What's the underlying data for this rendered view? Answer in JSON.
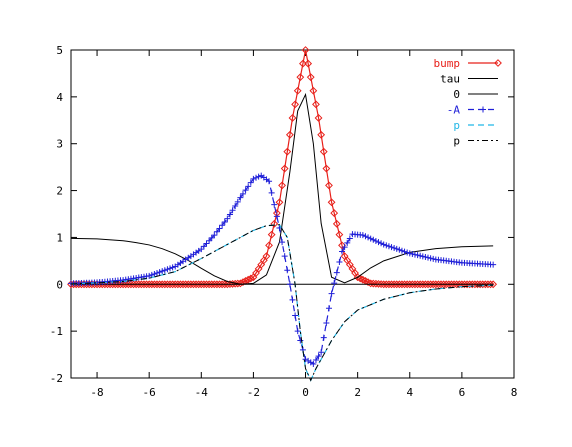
{
  "chart_data": {
    "type": "line",
    "title": "",
    "xlabel": "",
    "ylabel": "",
    "xlim": [
      -9,
      8
    ],
    "ylim": [
      -2,
      5
    ],
    "grid": false,
    "legend_position": "top-right",
    "x_ticks": [
      -8,
      -6,
      -4,
      -2,
      0,
      2,
      4,
      6,
      8
    ],
    "y_ticks": [
      -2,
      -1,
      0,
      1,
      2,
      3,
      4,
      5
    ],
    "x_tick_labels": [
      "-8",
      "-6",
      "-4",
      "-2",
      "0",
      "2",
      "4",
      "6",
      "8"
    ],
    "y_tick_labels": [
      "-2",
      "-1",
      "0",
      "1",
      "2",
      "3",
      "4",
      "5"
    ],
    "series": [
      {
        "name": "bump",
        "color": "#e8201a",
        "style": "solid-diamonds",
        "x": [
          -9.0,
          -8.0,
          -7.0,
          -6.0,
          -5.0,
          -4.0,
          -3.0,
          -2.5,
          -2.0,
          -1.5,
          -1.0,
          -0.5,
          0.0,
          0.5,
          1.0,
          1.5,
          2.0,
          2.5,
          3.0,
          4.0,
          5.0,
          6.0,
          7.2
        ],
        "y": [
          0.0,
          0.0,
          0.0,
          0.0,
          0.0,
          0.0,
          0.0,
          0.02,
          0.15,
          0.6,
          1.75,
          3.55,
          5.0,
          3.55,
          1.75,
          0.6,
          0.15,
          0.02,
          0.0,
          0.0,
          0.0,
          0.0,
          0.0
        ]
      },
      {
        "name": "tau",
        "color": "#000000",
        "style": "solid",
        "x": [
          -9.0,
          -8.0,
          -7.0,
          -6.5,
          -6.0,
          -5.5,
          -5.0,
          -4.5,
          -4.0,
          -3.5,
          -3.0,
          -2.5,
          -2.0,
          -1.5,
          -1.0,
          -0.6,
          -0.3,
          0.0,
          0.3,
          0.6,
          1.0,
          1.5,
          2.0,
          2.5,
          3.0,
          4.0,
          5.0,
          6.0,
          7.2
        ],
        "y": [
          0.98,
          0.97,
          0.93,
          0.89,
          0.84,
          0.76,
          0.65,
          0.51,
          0.34,
          0.18,
          0.06,
          0.0,
          0.02,
          0.2,
          0.9,
          2.4,
          3.7,
          4.05,
          3.0,
          1.3,
          0.15,
          0.03,
          0.15,
          0.35,
          0.5,
          0.68,
          0.76,
          0.8,
          0.82
        ]
      },
      {
        "name": "0",
        "color": "#000000",
        "style": "solid",
        "x": [
          -9.0,
          7.2
        ],
        "y": [
          0.0,
          0.0
        ]
      },
      {
        "name": "-A",
        "color": "#2020d8",
        "style": "dashed-plus",
        "x": [
          -9.0,
          -8.0,
          -7.0,
          -6.0,
          -5.0,
          -4.0,
          -3.5,
          -3.0,
          -2.5,
          -2.0,
          -1.7,
          -1.4,
          -1.0,
          -0.6,
          -0.3,
          0.0,
          0.3,
          0.6,
          1.0,
          1.4,
          1.8,
          2.2,
          2.6,
          3.0,
          4.0,
          5.0,
          6.0,
          7.2
        ],
        "y": [
          0.02,
          0.04,
          0.09,
          0.18,
          0.38,
          0.75,
          1.05,
          1.4,
          1.85,
          2.25,
          2.32,
          2.2,
          1.2,
          0.0,
          -1.0,
          -1.6,
          -1.7,
          -1.45,
          -0.2,
          0.7,
          1.07,
          1.05,
          0.95,
          0.85,
          0.66,
          0.53,
          0.46,
          0.42
        ]
      },
      {
        "name": "p",
        "color": "#22b7e6",
        "style": "dashed",
        "x": [
          -9.0,
          -8.0,
          -7.0,
          -6.0,
          -5.0,
          -4.0,
          -3.0,
          -2.0,
          -1.5,
          -1.0,
          -0.7,
          -0.4,
          -0.2,
          0.0,
          0.2,
          0.4,
          0.7,
          1.0,
          1.5,
          2.0,
          3.0,
          4.0,
          5.0,
          6.0,
          7.2
        ],
        "y": [
          0.01,
          0.03,
          0.06,
          0.13,
          0.27,
          0.55,
          0.85,
          1.15,
          1.25,
          1.27,
          1.0,
          0.0,
          -1.0,
          -1.8,
          -2.05,
          -1.8,
          -1.5,
          -1.2,
          -0.8,
          -0.55,
          -0.32,
          -0.18,
          -0.1,
          -0.05,
          -0.02
        ]
      },
      {
        "name": "p",
        "color": "#000000",
        "style": "dash-dot",
        "x": [
          -9.0,
          -8.0,
          -7.0,
          -6.0,
          -5.0,
          -4.0,
          -3.0,
          -2.0,
          -1.5,
          -1.0,
          -0.7,
          -0.4,
          -0.2,
          0.0,
          0.2,
          0.4,
          0.7,
          1.0,
          1.5,
          2.0,
          3.0,
          4.0,
          5.0,
          6.0,
          7.2
        ],
        "y": [
          0.01,
          0.03,
          0.06,
          0.13,
          0.27,
          0.55,
          0.85,
          1.15,
          1.25,
          1.27,
          1.0,
          0.0,
          -1.0,
          -1.8,
          -2.05,
          -1.8,
          -1.5,
          -1.2,
          -0.8,
          -0.55,
          -0.32,
          -0.18,
          -0.1,
          -0.05,
          -0.02
        ]
      }
    ]
  }
}
